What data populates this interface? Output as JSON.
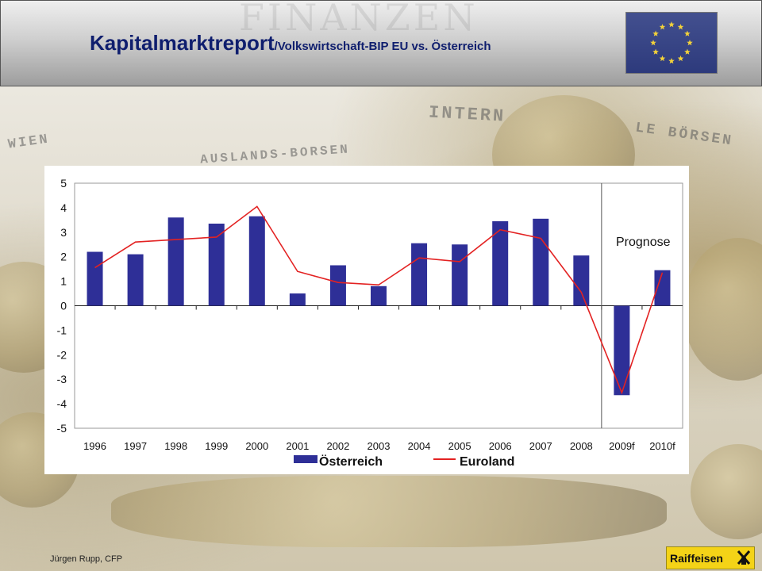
{
  "header": {
    "title_main": "Kapitalmarktreport",
    "title_sub": "/Volkswirtschaft-BIP EU vs. Österreich",
    "watermark": "FINANZEN",
    "flag_icon": "eu-flag-icon",
    "flag_color": "#2d3a7c",
    "star_color": "#f3d23a"
  },
  "background_texts": {
    "wien": "WIEN",
    "auslands": "AUSLANDS-BORSEN",
    "intern": "INTERN",
    "boersen": "LE BÖRSEN"
  },
  "chart_data": {
    "type": "bar",
    "categories": [
      "1996",
      "1997",
      "1998",
      "1999",
      "2000",
      "2001",
      "2002",
      "2003",
      "2004",
      "2005",
      "2006",
      "2007",
      "2008",
      "2009f",
      "2010f"
    ],
    "series": [
      {
        "name": "Österreich",
        "type": "bar",
        "color": "#2e2f97",
        "values": [
          2.2,
          2.1,
          3.6,
          3.35,
          3.65,
          0.5,
          1.65,
          0.8,
          2.55,
          2.5,
          3.45,
          3.55,
          2.05,
          -3.65,
          1.45
        ]
      },
      {
        "name": "Euroland",
        "type": "line",
        "color": "#e32222",
        "values": [
          1.55,
          2.6,
          2.7,
          2.8,
          4.05,
          1.4,
          0.95,
          0.85,
          1.95,
          1.8,
          3.1,
          2.75,
          0.55,
          -3.55,
          1.35
        ]
      }
    ],
    "ylim": [
      -5,
      5
    ],
    "yticks": [
      "5",
      "4",
      "3",
      "2",
      "1",
      "0",
      "-1",
      "-2",
      "-3",
      "-4",
      "-5"
    ],
    "annotation": "Prognose",
    "forecast_divider_after": "2008",
    "grid": false,
    "legend_position": "bottom"
  },
  "footer": {
    "author": "Jürgen Rupp, CFP",
    "logo_text": "Raiffeisen",
    "logo_icon": "raiffeisen-gable-icon",
    "logo_color": "#f4d317"
  }
}
